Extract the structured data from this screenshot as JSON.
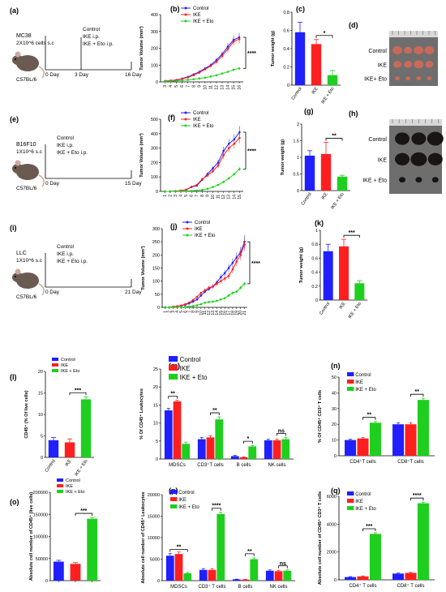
{
  "colors": {
    "control": "#1f1fff",
    "ike": "#ff1f1f",
    "ike_eto": "#1fcf1f"
  },
  "legend": {
    "control": "Control",
    "ike": "IKE",
    "ike_eto": "IKE + Eto"
  },
  "panel_a": {
    "letter": "(a)",
    "cells": "MC38",
    "dose": "2X10^6 cells s.c",
    "groups": [
      "Control",
      "IKE i.p.",
      "IKE + Eto i.p."
    ],
    "strain": "C57BL/6",
    "t0": "0 Day",
    "t1": "3 Day",
    "t2": "16 Day"
  },
  "panel_e": {
    "letter": "(e)",
    "cells": "B16F10",
    "dose": "1X10^6 s.c",
    "groups": [
      "Control",
      "IKE i.p.",
      "IKE + Eto i.p."
    ],
    "strain": "C57BL/6",
    "t0": "0 Day",
    "t2": "15 Day"
  },
  "panel_i": {
    "letter": "(i)",
    "cells": "LLC",
    "dose": "1X10^6 s.c",
    "groups": [
      "Control",
      "IKE i.p.",
      "IKE + Eto i.p."
    ],
    "strain": "C57BL/6",
    "t0": "0 Day",
    "t2": "21 Day"
  },
  "panel_d": {
    "letter": "(d)",
    "rows": [
      "Control",
      "IKE",
      "IKE+ Eto"
    ]
  },
  "panel_h": {
    "letter": "(h)",
    "rows": [
      "Control",
      "IKE",
      "IKE + Eto"
    ]
  },
  "chart_data": [
    {
      "id": "b",
      "type": "line",
      "letter": "(b)",
      "ylabel": "Tumor Volume (mm³)",
      "ylim": [
        0,
        400
      ],
      "yticks": [
        0,
        100,
        200,
        300,
        400
      ],
      "x": [
        3,
        4,
        5,
        6,
        7,
        8,
        9,
        10,
        11,
        12,
        13,
        14,
        15,
        16
      ],
      "sig": "****",
      "series": [
        {
          "name": "Control",
          "values": [
            5,
            8,
            12,
            20,
            30,
            45,
            60,
            80,
            100,
            130,
            165,
            210,
            250,
            265
          ]
        },
        {
          "name": "IKE",
          "values": [
            5,
            7,
            11,
            18,
            27,
            40,
            55,
            75,
            95,
            120,
            155,
            195,
            240,
            255
          ]
        },
        {
          "name": "IKE + Eto",
          "values": [
            3,
            4,
            6,
            9,
            12,
            16,
            20,
            25,
            32,
            40,
            50,
            60,
            72,
            80
          ]
        }
      ]
    },
    {
      "id": "c",
      "type": "bar",
      "letter": "(c)",
      "ylabel": "Tumor weight (g)",
      "ylim": [
        0,
        0.8
      ],
      "yticks": [
        0,
        0.2,
        0.4,
        0.6,
        0.8
      ],
      "categories": [
        "Control",
        "IKE",
        "IKE + Eto"
      ],
      "values": [
        0.58,
        0.45,
        0.11
      ],
      "errors": [
        0.11,
        0.05,
        0.05
      ],
      "sig": [
        {
          "from": 1,
          "to": 2,
          "label": "*"
        }
      ]
    },
    {
      "id": "f",
      "type": "line",
      "letter": "(f)",
      "ylabel": "Tumor Volume (mm³)",
      "ylim": [
        0,
        500
      ],
      "yticks": [
        0,
        100,
        200,
        300,
        400,
        500
      ],
      "x": [
        1,
        2,
        3,
        4,
        5,
        6,
        7,
        8,
        9,
        10,
        11,
        12,
        13,
        14,
        15
      ],
      "sig": "****",
      "series": [
        {
          "name": "Control",
          "values": [
            0,
            0,
            2,
            5,
            10,
            30,
            40,
            80,
            120,
            160,
            200,
            280,
            330,
            360,
            410
          ]
        },
        {
          "name": "IKE",
          "values": [
            0,
            0,
            2,
            5,
            12,
            32,
            45,
            85,
            110,
            140,
            180,
            250,
            300,
            330,
            370
          ]
        },
        {
          "name": "IKE + Eto",
          "values": [
            0,
            0,
            0,
            1,
            2,
            4,
            6,
            10,
            18,
            30,
            45,
            65,
            90,
            120,
            155
          ]
        }
      ]
    },
    {
      "id": "g",
      "type": "bar",
      "letter": "(g)",
      "ylabel": "Tumor weight (g)",
      "ylim": [
        0,
        2.0
      ],
      "yticks": [
        0,
        0.5,
        1.0,
        1.5,
        2.0
      ],
      "categories": [
        "Control",
        "IKE",
        "IKE + Eto"
      ],
      "values": [
        1.05,
        1.1,
        0.42
      ],
      "errors": [
        0.15,
        0.35,
        0.04
      ],
      "sig": [
        {
          "from": 1,
          "to": 2,
          "label": "**"
        }
      ]
    },
    {
      "id": "j",
      "type": "line",
      "letter": "(j)",
      "ylabel": "Tumor Volume (mm³)",
      "ylim": [
        0,
        300
      ],
      "yticks": [
        0,
        50,
        100,
        150,
        200,
        250,
        300
      ],
      "x": [
        1,
        2,
        3,
        4,
        5,
        6,
        7,
        8,
        9,
        10,
        11,
        12,
        13,
        14,
        15,
        16,
        17,
        18,
        19,
        20,
        21
      ],
      "sig": "****",
      "series": [
        {
          "name": "Control",
          "values": [
            0,
            0,
            2,
            4,
            6,
            10,
            15,
            22,
            30,
            45,
            60,
            70,
            80,
            95,
            115,
            130,
            150,
            170,
            190,
            210,
            250
          ]
        },
        {
          "name": "IKE",
          "values": [
            0,
            0,
            2,
            4,
            7,
            12,
            18,
            28,
            40,
            55,
            65,
            75,
            80,
            90,
            100,
            110,
            120,
            145,
            175,
            200,
            240
          ]
        },
        {
          "name": "IKE + Eto",
          "values": [
            0,
            0,
            0,
            0,
            0,
            2,
            3,
            5,
            8,
            12,
            18,
            20,
            22,
            25,
            30,
            35,
            45,
            55,
            60,
            75,
            90
          ]
        }
      ]
    },
    {
      "id": "k",
      "type": "bar",
      "letter": "(k)",
      "ylabel": "Tumor weight (g)",
      "ylim": [
        0,
        1.0
      ],
      "yticks": [
        0,
        0.2,
        0.4,
        0.6,
        0.8,
        1.0
      ],
      "categories": [
        "Control",
        "IKE",
        "IKE + Eto"
      ],
      "values": [
        0.7,
        0.77,
        0.24
      ],
      "errors": [
        0.1,
        0.1,
        0.04
      ],
      "sig": [
        {
          "from": 1,
          "to": 2,
          "label": "***"
        }
      ]
    },
    {
      "id": "l",
      "type": "bar",
      "letter": "(l)",
      "ylabel": "CD45⁺ (% Of live cells)",
      "ylim": [
        0,
        20
      ],
      "yticks": [
        0,
        5,
        10,
        15,
        20
      ],
      "categories": [
        "Control",
        "IKE",
        "IKE + Eto"
      ],
      "values": [
        4,
        3.5,
        13.5
      ],
      "errors": [
        0.6,
        0.8,
        0.6
      ],
      "sig": [
        {
          "from": 1,
          "to": 2,
          "label": "***"
        }
      ],
      "legend": true
    },
    {
      "id": "m",
      "type": "grouped_bar",
      "letter": "(m)",
      "ylabel": "% Of CD45⁺ Leukocytes",
      "ylim": [
        0,
        25
      ],
      "yticks": [
        0,
        5,
        10,
        15,
        20,
        25
      ],
      "categories": [
        "MDSCs",
        "CD3⁺T cells",
        "B cells",
        "NK cells"
      ],
      "series": [
        {
          "name": "Control",
          "values": [
            13.5,
            5.5,
            0.8,
            5.2
          ],
          "errors": [
            0.6,
            0.5,
            0.2,
            0.3
          ]
        },
        {
          "name": "IKE",
          "values": [
            16,
            6,
            0.5,
            5.2
          ],
          "errors": [
            0.3,
            0.5,
            0.1,
            0.3
          ]
        },
        {
          "name": "IKE + Eto",
          "values": [
            4.2,
            11,
            3.5,
            5.5
          ],
          "errors": [
            0.5,
            0.7,
            0.3,
            0.5
          ]
        }
      ],
      "sig": [
        {
          "cat": 0,
          "from": 0,
          "to": 1,
          "label": "**"
        },
        {
          "cat": 1,
          "from": 1,
          "to": 2,
          "label": "**"
        },
        {
          "cat": 2,
          "from": 1,
          "to": 2,
          "label": "*"
        },
        {
          "cat": 3,
          "from": 1,
          "to": 2,
          "label": "ns"
        }
      ]
    },
    {
      "id": "n",
      "type": "grouped_bar",
      "letter": "(n)",
      "ylabel": "% Of CD45⁺ CD3⁺ T cells",
      "ylim": [
        0,
        50
      ],
      "yticks": [
        0,
        10,
        20,
        30,
        40,
        50
      ],
      "categories": [
        "CD4⁺T cells",
        "CD8⁺T cells"
      ],
      "series": [
        {
          "name": "Control",
          "values": [
            10,
            20
          ],
          "errors": [
            0.5,
            1
          ]
        },
        {
          "name": "IKE",
          "values": [
            11,
            20
          ],
          "errors": [
            0.5,
            1
          ]
        },
        {
          "name": "IKE + Eto",
          "values": [
            21,
            35.5
          ],
          "errors": [
            0.8,
            1
          ]
        }
      ],
      "sig": [
        {
          "cat": 0,
          "from": 1,
          "to": 2,
          "label": "**"
        },
        {
          "cat": 1,
          "from": 1,
          "to": 2,
          "label": "**"
        }
      ]
    },
    {
      "id": "o",
      "type": "bar",
      "letter": "(o)",
      "ylabel": "Absolute cell number of CD45⁺ (live cells)",
      "ylim": [
        0,
        200000
      ],
      "yticks": [
        0,
        50000,
        100000,
        150000,
        200000
      ],
      "categories": [
        "",
        "",
        ""
      ],
      "values": [
        43000,
        38000,
        140000
      ],
      "errors": [
        3000,
        3000,
        3000
      ],
      "sig": [
        {
          "from": 1,
          "to": 2,
          "label": "***"
        }
      ],
      "legend": true
    },
    {
      "id": "p",
      "type": "grouped_bar",
      "letter": "(p)",
      "ylabel": "Absolute cell number of CD45⁺ Leukocytes",
      "ylim": [
        0,
        20000
      ],
      "yticks": [
        0,
        5000,
        10000,
        15000,
        20000
      ],
      "categories": [
        "MDSCs",
        "CD3⁺ T cells",
        "B cells",
        "NK cells"
      ],
      "series": [
        {
          "name": "Control",
          "values": [
            5800,
            2500,
            300,
            2300
          ],
          "errors": [
            500,
            300,
            50,
            200
          ]
        },
        {
          "name": "IKE",
          "values": [
            6200,
            2500,
            250,
            2200
          ],
          "errors": [
            500,
            300,
            50,
            200
          ]
        },
        {
          "name": "IKE + Eto",
          "values": [
            1700,
            15500,
            5000,
            2300
          ],
          "errors": [
            200,
            400,
            300,
            200
          ]
        }
      ],
      "sig": [
        {
          "cat": 0,
          "from": 0,
          "to": 2,
          "label": "**"
        },
        {
          "cat": 1,
          "from": 1,
          "to": 2,
          "label": "****"
        },
        {
          "cat": 2,
          "from": 1,
          "to": 2,
          "label": "**"
        },
        {
          "cat": 3,
          "from": 1,
          "to": 2,
          "label": "ns"
        }
      ]
    },
    {
      "id": "q",
      "type": "grouped_bar",
      "letter": "(q)",
      "ylabel": "Absolute cell number of CD45⁺ CD3⁺ T cells",
      "ylim": [
        0,
        6000
      ],
      "yticks": [
        0,
        2000,
        4000,
        6000
      ],
      "categories": [
        "CD4⁺ T cells",
        "CD8⁺ T cells"
      ],
      "series": [
        {
          "name": "Control",
          "values": [
            200,
            450
          ],
          "errors": [
            30,
            40
          ]
        },
        {
          "name": "IKE",
          "values": [
            250,
            500
          ],
          "errors": [
            30,
            40
          ]
        },
        {
          "name": "IKE + Eto",
          "values": [
            3300,
            5500
          ],
          "errors": [
            80,
            80
          ]
        }
      ],
      "sig": [
        {
          "cat": 0,
          "from": 1,
          "to": 2,
          "label": "***"
        },
        {
          "cat": 1,
          "from": 1,
          "to": 2,
          "label": "****"
        }
      ]
    }
  ]
}
